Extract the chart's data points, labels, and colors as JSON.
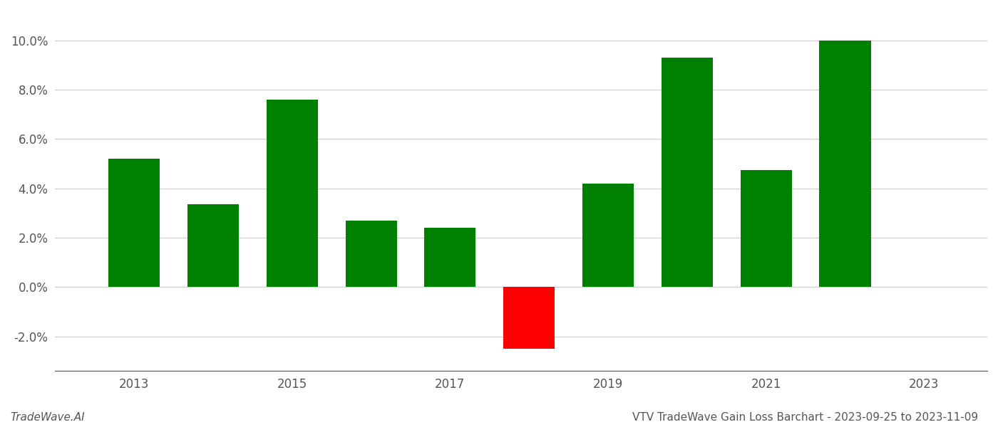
{
  "years": [
    2013,
    2014,
    2015,
    2016,
    2017,
    2018,
    2019,
    2020,
    2021,
    2022
  ],
  "values": [
    0.052,
    0.0335,
    0.076,
    0.027,
    0.024,
    -0.025,
    0.042,
    0.093,
    0.0475,
    0.1
  ],
  "colors": [
    "#008000",
    "#008000",
    "#008000",
    "#008000",
    "#008000",
    "#ff0000",
    "#008000",
    "#008000",
    "#008000",
    "#008000"
  ],
  "title": "VTV TradeWave Gain Loss Barchart - 2023-09-25 to 2023-11-09",
  "watermark": "TradeWave.AI",
  "ylim": [
    -0.034,
    0.112
  ],
  "yticks": [
    -0.02,
    0.0,
    0.02,
    0.04,
    0.06,
    0.08,
    0.1
  ],
  "xticks": [
    2013,
    2015,
    2017,
    2019,
    2021,
    2023
  ],
  "xlim": [
    2012.0,
    2023.8
  ],
  "background_color": "#ffffff",
  "grid_color": "#cccccc",
  "bar_width": 0.65,
  "figsize": [
    14.0,
    6.0
  ],
  "dpi": 100,
  "title_fontsize": 11,
  "tick_fontsize": 12,
  "watermark_fontsize": 11
}
